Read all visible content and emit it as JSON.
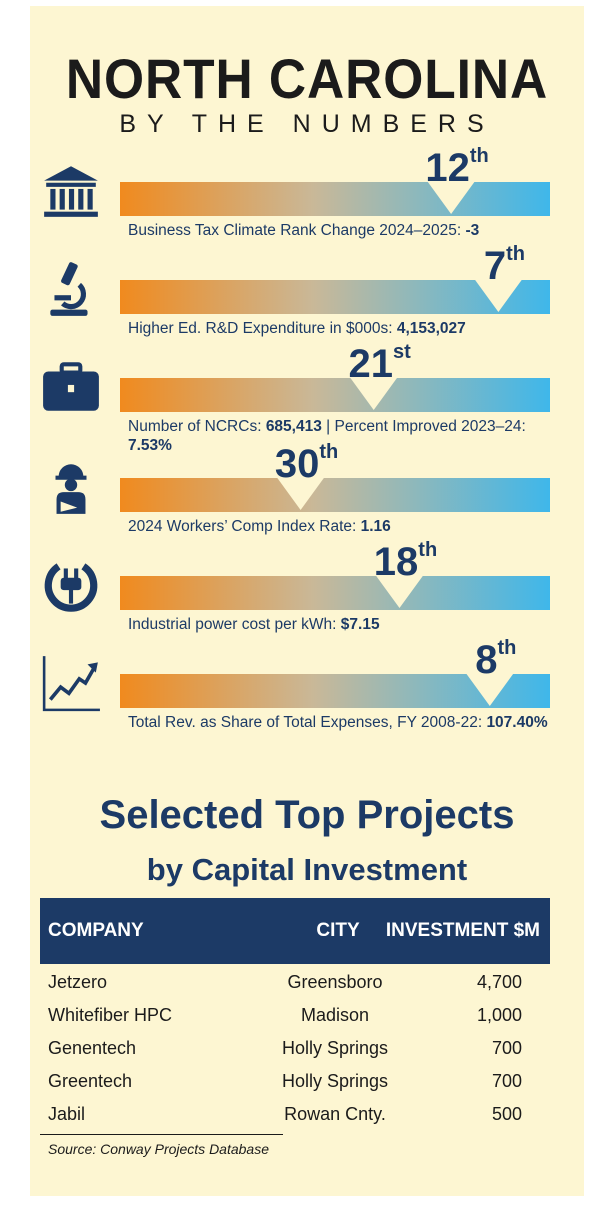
{
  "header": {
    "title": "NORTH CAROLINA",
    "subtitle": "BY THE NUMBERS"
  },
  "colors": {
    "background": "#fdf6d2",
    "navy": "#1c3a66",
    "bar_start": "#f08a1e",
    "bar_end": "#3fb7ea"
  },
  "stats": [
    {
      "icon": "bank-building-icon",
      "rank_num": "12",
      "rank_suffix": "th",
      "marker_fraction": 0.77,
      "caption_label": "Business Tax Climate Rank Change 2024–2025:",
      "caption_value": "-3"
    },
    {
      "icon": "microscope-icon",
      "rank_num": "7",
      "rank_suffix": "th",
      "marker_fraction": 0.88,
      "caption_label": "Higher Ed. R&D Expenditure in $000s:",
      "caption_value": "4,153,027"
    },
    {
      "icon": "briefcase-icon",
      "rank_num": "21",
      "rank_suffix": "st",
      "marker_fraction": 0.59,
      "caption_label": "Number of NCRCs:",
      "caption_value": "685,413",
      "caption_mid": " | Percent Improved 2023–24:",
      "caption_value2": "7.53%"
    },
    {
      "icon": "injured-worker-icon",
      "rank_num": "30",
      "rank_suffix": "th",
      "marker_fraction": 0.42,
      "caption_label": "2024 Workers’ Comp Index Rate:",
      "caption_value": "1.16"
    },
    {
      "icon": "power-plug-icon",
      "rank_num": "18",
      "rank_suffix": "th",
      "marker_fraction": 0.65,
      "caption_label": "Industrial power cost per kWh:",
      "caption_value": "$7.15"
    },
    {
      "icon": "rising-chart-icon",
      "rank_num": "8",
      "rank_suffix": "th",
      "marker_fraction": 0.86,
      "caption_label": "Total Rev. as Share of Total Expenses, FY 2008-22:",
      "caption_value": "107.40%"
    }
  ],
  "projects": {
    "title": "Selected Top Projects",
    "subtitle": "by Capital Investment",
    "columns": [
      "COMPANY",
      "CITY",
      "INVESTMENT $M"
    ],
    "rows": [
      [
        "Jetzero",
        "Greensboro",
        "4,700"
      ],
      [
        "Whitefiber HPC",
        "Madison",
        "1,000"
      ],
      [
        "Genentech",
        "Holly Springs",
        "700"
      ],
      [
        "Greentech",
        "Holly Springs",
        "700"
      ],
      [
        "Jabil",
        "Rowan Cnty.",
        "500"
      ]
    ],
    "source": "Source: Conway Projects Database"
  }
}
